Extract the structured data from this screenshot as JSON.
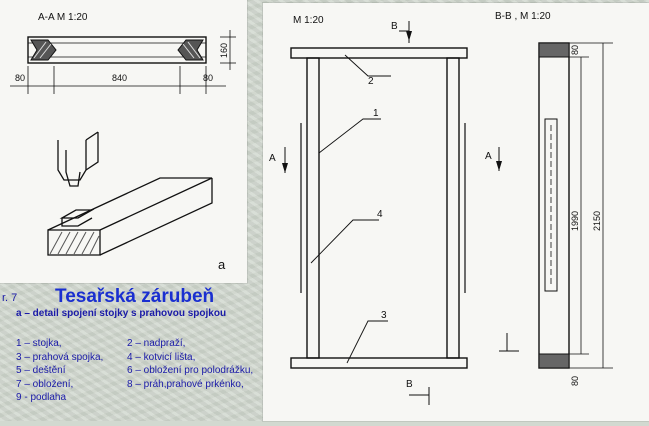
{
  "left_drawing": {
    "section_label": "A-A  M 1:20",
    "dimensions": {
      "left": "80",
      "middle": "840",
      "right": "80",
      "height": "160"
    },
    "detail_letter": "a"
  },
  "right_drawing": {
    "scale_label": "M 1:20",
    "section_label": "B-B ,  M 1:20",
    "marker_b": "B",
    "marker_a": "A",
    "part_labels": [
      "2",
      "1",
      "4",
      "3"
    ],
    "dimensions": {
      "top": "80",
      "inner": "1990",
      "total": "2150",
      "bottom": "80"
    }
  },
  "caption": {
    "figure_number": "r. 7",
    "title": "Tesařská zárubeň",
    "subtitle": "a – detail spojení stojky s prahovou spojkou",
    "legend": [
      [
        "1 – stojka,",
        "2 – nadpraží,"
      ],
      [
        "3 – prahová spojka,",
        "4 – kotvicí lišta,"
      ],
      [
        "5 – deštění",
        "6 – obložení pro polodrážku,"
      ],
      [
        "7 – obložení,",
        "8 – práh,prahové prkénko,"
      ],
      [
        "9 - podlaha",
        ""
      ]
    ]
  }
}
